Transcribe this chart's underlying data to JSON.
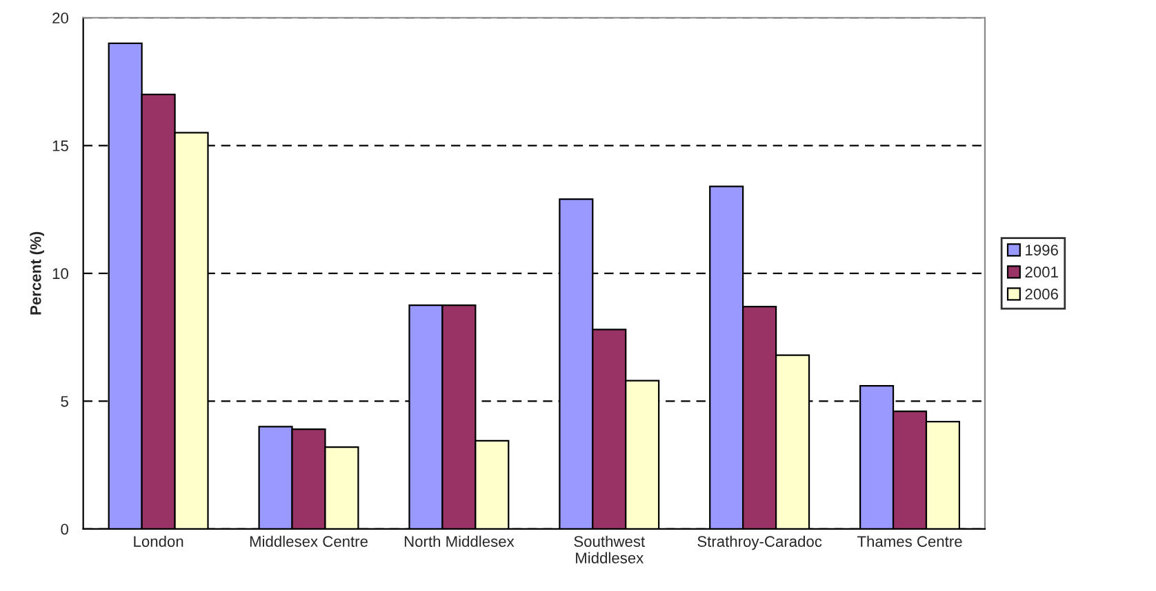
{
  "chart_data": {
    "type": "bar",
    "ylabel": "Percent (%)",
    "categories": [
      "London",
      "Middlesex Centre",
      "North Middlesex",
      "Southwest\nMiddlesex",
      "Strathroy-Caradoc",
      "Thames Centre"
    ],
    "series": [
      {
        "name": "1996",
        "color": "#9999ff",
        "values": [
          19,
          4.0,
          8.75,
          12.9,
          13.4,
          5.6
        ]
      },
      {
        "name": "2001",
        "color": "#993366",
        "values": [
          17,
          3.9,
          8.75,
          7.8,
          8.7,
          4.6
        ]
      },
      {
        "name": "2006",
        "color": "#ffffcc",
        "values": [
          15.5,
          3.2,
          3.45,
          5.8,
          6.8,
          4.2
        ]
      }
    ],
    "ylim": [
      0,
      20
    ],
    "yticks": [
      0,
      5,
      10,
      15,
      20
    ],
    "grid": "y",
    "legend": "right"
  }
}
